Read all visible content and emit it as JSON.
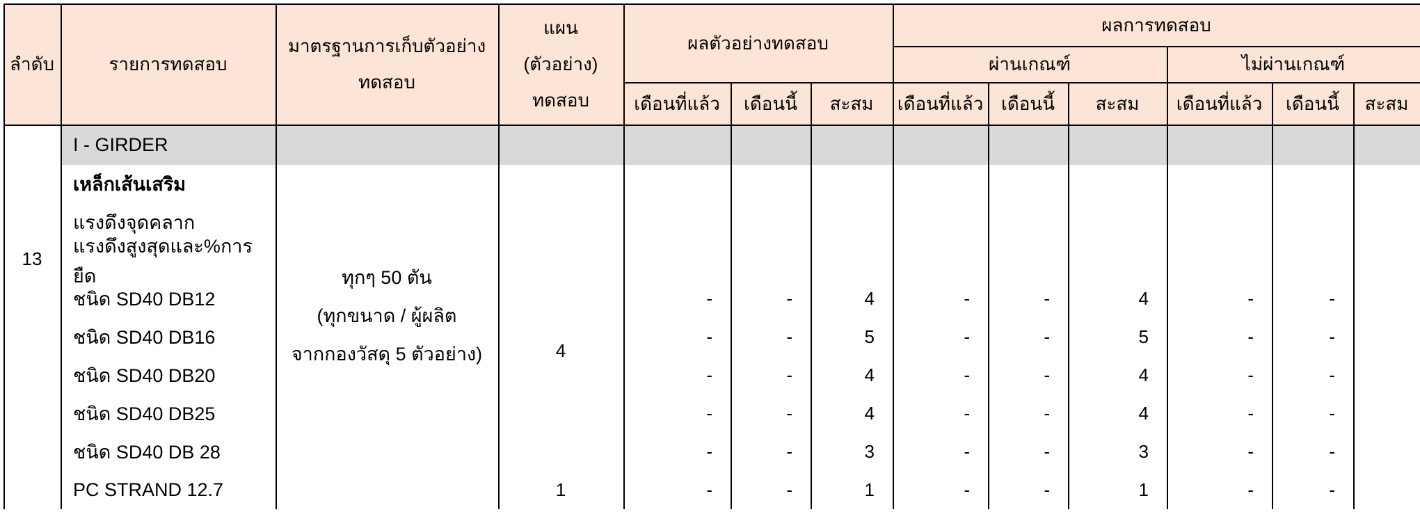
{
  "colors": {
    "header_bg": "#FCE4D6",
    "section_row_bg": "#D9D9D9",
    "border": "#000000",
    "text": "#000000"
  },
  "header": {
    "col_no": "ลำดับ",
    "col_item": "รายการทดสอบ",
    "col_standard_line1": "มาตรฐานการเก็บตัวอย่าง",
    "col_standard_line2": "ทดสอบ",
    "col_plan_line1": "แผน",
    "col_plan_line2": "(ตัวอย่าง)",
    "col_plan_line3": "ทดสอบ",
    "group_sample_results": "ผลตัวอย่างทดสอบ",
    "group_test_results": "ผลการทดสอบ",
    "group_pass": "ผ่านเกณฑ์",
    "group_fail": "ไม่ผ่านเกณฑ์",
    "sub_last_month": "เดือนที่แล้ว",
    "sub_this_month": "เดือนนี้",
    "sub_cumulative": "สะสม"
  },
  "section": {
    "order_no": "13",
    "title": "I - GIRDER",
    "standard_line1": "ทุกๆ 50 ตัน",
    "standard_line2": "(ทุกขนาด / ผู้ผลิต",
    "standard_line3": "จากกองวัสดุ 5 ตัวอย่าง)",
    "plan_main": "4",
    "plan_pc_strand": "1"
  },
  "rows": [
    {
      "label": "เหล็กเส้นเสริม",
      "bold": true,
      "values": [
        "",
        "",
        "",
        "",
        "",
        "",
        "",
        "",
        ""
      ]
    },
    {
      "label": "แรงดึงจุดคลาก",
      "bold": false,
      "values": [
        "",
        "",
        "",
        "",
        "",
        "",
        "",
        "",
        ""
      ]
    },
    {
      "label": "แรงดึงสูงสุดและ%การยืด",
      "bold": false,
      "values": [
        "",
        "",
        "",
        "",
        "",
        "",
        "",
        "",
        ""
      ]
    },
    {
      "label": "ชนิด SD40 DB12",
      "bold": false,
      "values": [
        "-",
        "-",
        "4",
        "-",
        "-",
        "4",
        "-",
        "-",
        ""
      ]
    },
    {
      "label": "ชนิด SD40 DB16",
      "bold": false,
      "values": [
        "-",
        "-",
        "5",
        "-",
        "-",
        "5",
        "-",
        "-",
        ""
      ]
    },
    {
      "label": "ชนิด SD40 DB20",
      "bold": false,
      "values": [
        "-",
        "-",
        "4",
        "-",
        "-",
        "4",
        "-",
        "-",
        ""
      ]
    },
    {
      "label": "ชนิด SD40 DB25",
      "bold": false,
      "values": [
        "-",
        "-",
        "4",
        "-",
        "-",
        "4",
        "-",
        "-",
        ""
      ]
    },
    {
      "label": "ชนิด SD40 DB 28",
      "bold": false,
      "values": [
        "-",
        "-",
        "3",
        "-",
        "-",
        "3",
        "-",
        "-",
        ""
      ]
    },
    {
      "label": "PC STRAND 12.7",
      "bold": false,
      "values": [
        "-",
        "-",
        "1",
        "-",
        "-",
        "1",
        "-",
        "-",
        ""
      ]
    }
  ]
}
